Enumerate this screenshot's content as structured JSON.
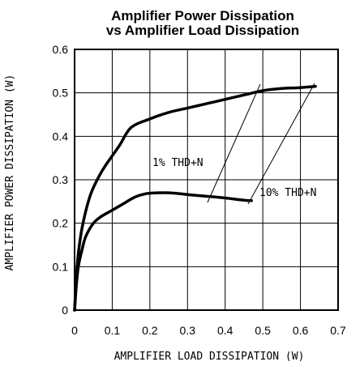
{
  "chart_data": {
    "type": "line",
    "title": [
      "Amplifier Power Dissipation",
      "vs Amplifier Load Dissipation"
    ],
    "xlabel": "AMPLIFIER LOAD DISSIPATION (W)",
    "ylabel": "AMPLIFIER POWER DISSIPATION (W)",
    "xlim": [
      0,
      0.7
    ],
    "ylim": [
      0,
      0.6
    ],
    "xticks": [
      "0",
      "0.1",
      "0.2",
      "0.3",
      "0.4",
      "0.5",
      "0.6",
      "0.7"
    ],
    "yticks": [
      "0",
      "0.1",
      "0.2",
      "0.3",
      "0.4",
      "0.5",
      "0.6"
    ],
    "grid": true,
    "series": [
      {
        "name": "10% THD+N",
        "x": [
          0,
          0.005,
          0.01,
          0.02,
          0.04,
          0.06,
          0.08,
          0.1,
          0.12,
          0.15,
          0.2,
          0.25,
          0.3,
          0.35,
          0.4,
          0.45,
          0.5,
          0.55,
          0.6,
          0.64
        ],
        "y": [
          0,
          0.08,
          0.13,
          0.19,
          0.26,
          0.3,
          0.33,
          0.355,
          0.38,
          0.42,
          0.44,
          0.455,
          0.465,
          0.475,
          0.485,
          0.495,
          0.505,
          0.51,
          0.512,
          0.515
        ]
      },
      {
        "name": "1% THD+N",
        "x": [
          0,
          0.005,
          0.01,
          0.02,
          0.03,
          0.05,
          0.07,
          0.1,
          0.13,
          0.16,
          0.19,
          0.22,
          0.25,
          0.28,
          0.31,
          0.35,
          0.4,
          0.45,
          0.47
        ],
        "y": [
          0,
          0.06,
          0.1,
          0.14,
          0.17,
          0.2,
          0.215,
          0.23,
          0.245,
          0.26,
          0.268,
          0.27,
          0.27,
          0.268,
          0.265,
          0.262,
          0.258,
          0.253,
          0.252
        ]
      }
    ],
    "annotations": [
      {
        "text": "1% THD+N",
        "series": "1% THD+N"
      },
      {
        "text": "10% THD+N",
        "series": "10% THD+N"
      }
    ]
  }
}
